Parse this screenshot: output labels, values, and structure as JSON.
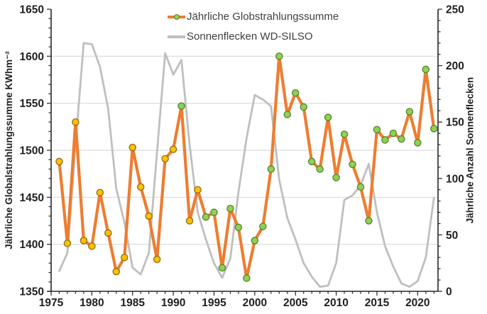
{
  "chart_data": {
    "type": "line",
    "title": "",
    "x": [
      1976,
      1977,
      1978,
      1979,
      1980,
      1981,
      1982,
      1983,
      1984,
      1985,
      1986,
      1987,
      1988,
      1989,
      1990,
      1991,
      1992,
      1993,
      1994,
      1995,
      1996,
      1997,
      1998,
      1999,
      2000,
      2001,
      2002,
      2003,
      2004,
      2005,
      2006,
      2007,
      2008,
      2009,
      2010,
      2011,
      2012,
      2013,
      2014,
      2015,
      2016,
      2017,
      2018,
      2019,
      2020,
      2021,
      2022
    ],
    "series": [
      {
        "name": "Jährliche Globstrahlungssumme",
        "axis": "left",
        "line_color": "#ED7D31",
        "line_width": 4.2,
        "marker_size": 4.6,
        "values": [
          1488,
          1401,
          1530,
          1404,
          1398,
          1455,
          1412,
          1371,
          1386,
          1503,
          1461,
          1430,
          1384,
          1491,
          1501,
          1547,
          1425,
          1458,
          1429,
          1434,
          1375,
          1438,
          1418,
          1364,
          1404,
          1419,
          1480,
          1600,
          1538,
          1561,
          1546,
          1488,
          1480,
          1535,
          1471,
          1517,
          1485,
          1461,
          1425,
          1522,
          1511,
          1518,
          1512,
          1541,
          1508,
          1586,
          1523
        ],
        "marker_types": [
          "yellow",
          "yellow",
          "yellow",
          "yellow",
          "yellow",
          "yellow",
          "yellow",
          "yellow",
          "yellow",
          "yellow",
          "yellow",
          "yellow",
          "yellow",
          "yellow",
          "yellow",
          "green",
          "yellow",
          "yellow",
          "green",
          "green",
          "green",
          "green",
          "green",
          "green",
          "green",
          "green",
          "green",
          "green",
          "green",
          "green",
          "green",
          "green",
          "green",
          "green",
          "green",
          "green",
          "green",
          "green",
          "green",
          "green",
          "green",
          "green",
          "green",
          "green",
          "green",
          "green",
          "green"
        ]
      },
      {
        "name": "Sonnenflecken WD-SILSO",
        "axis": "right",
        "line_color": "#BFBFBF",
        "line_width": 2.8,
        "values": [
          18,
          34,
          130,
          220,
          219,
          199,
          162,
          91,
          61,
          21,
          15,
          34,
          123,
          211,
          192,
          205,
          130,
          70,
          46,
          25,
          12,
          29,
          88,
          136,
          174,
          170,
          164,
          99,
          65,
          46,
          25,
          13,
          4,
          5,
          25,
          81,
          85,
          94,
          113,
          70,
          40,
          22,
          7,
          4,
          9,
          30,
          83
        ]
      }
    ],
    "axes": {
      "x": {
        "min": 1975,
        "max": 2022.5,
        "major_ticks": [
          1975,
          1980,
          1985,
          1990,
          1995,
          2000,
          2005,
          2010,
          2015,
          2020
        ],
        "tick_labels": [
          "1975",
          "1980",
          "1985",
          "1990",
          "1995",
          "2000",
          "2005",
          "2010",
          "2015",
          "2020"
        ],
        "minor_step": 1
      },
      "left": {
        "label": "Jährliche Globalstrahlungssumme KWhm⁻²",
        "min": 1350,
        "max": 1650,
        "major_ticks": [
          1350,
          1400,
          1450,
          1500,
          1550,
          1600,
          1650
        ],
        "tick_labels": [
          "1350",
          "1400",
          "1450",
          "1500",
          "1550",
          "1600",
          "1650"
        ],
        "minor_step": 10
      },
      "right": {
        "label": "Jährliche Anzahl Sonnenflecken",
        "min": 0,
        "max": 250,
        "major_ticks": [
          0,
          50,
          100,
          150,
          200,
          250
        ],
        "tick_labels": [
          "0",
          "50",
          "100",
          "150",
          "200",
          "250"
        ],
        "minor_step": 10
      }
    },
    "grid": "horizontal-only",
    "gridline_values": [
      1400,
      1450,
      1500,
      1550,
      1600
    ],
    "legend_position": "top-center"
  },
  "colors": {
    "orange_line": "#ED7D31",
    "gray_line": "#BFBFBF",
    "marker_yellow_fill": "#FFC000",
    "marker_yellow_stroke": "#8A6D1B",
    "marker_green_fill": "#92D050",
    "marker_green_stroke": "#538135",
    "gridline": "#D9D9D9",
    "axis_line": "#262626",
    "tick_label": "#1f1f1f"
  }
}
